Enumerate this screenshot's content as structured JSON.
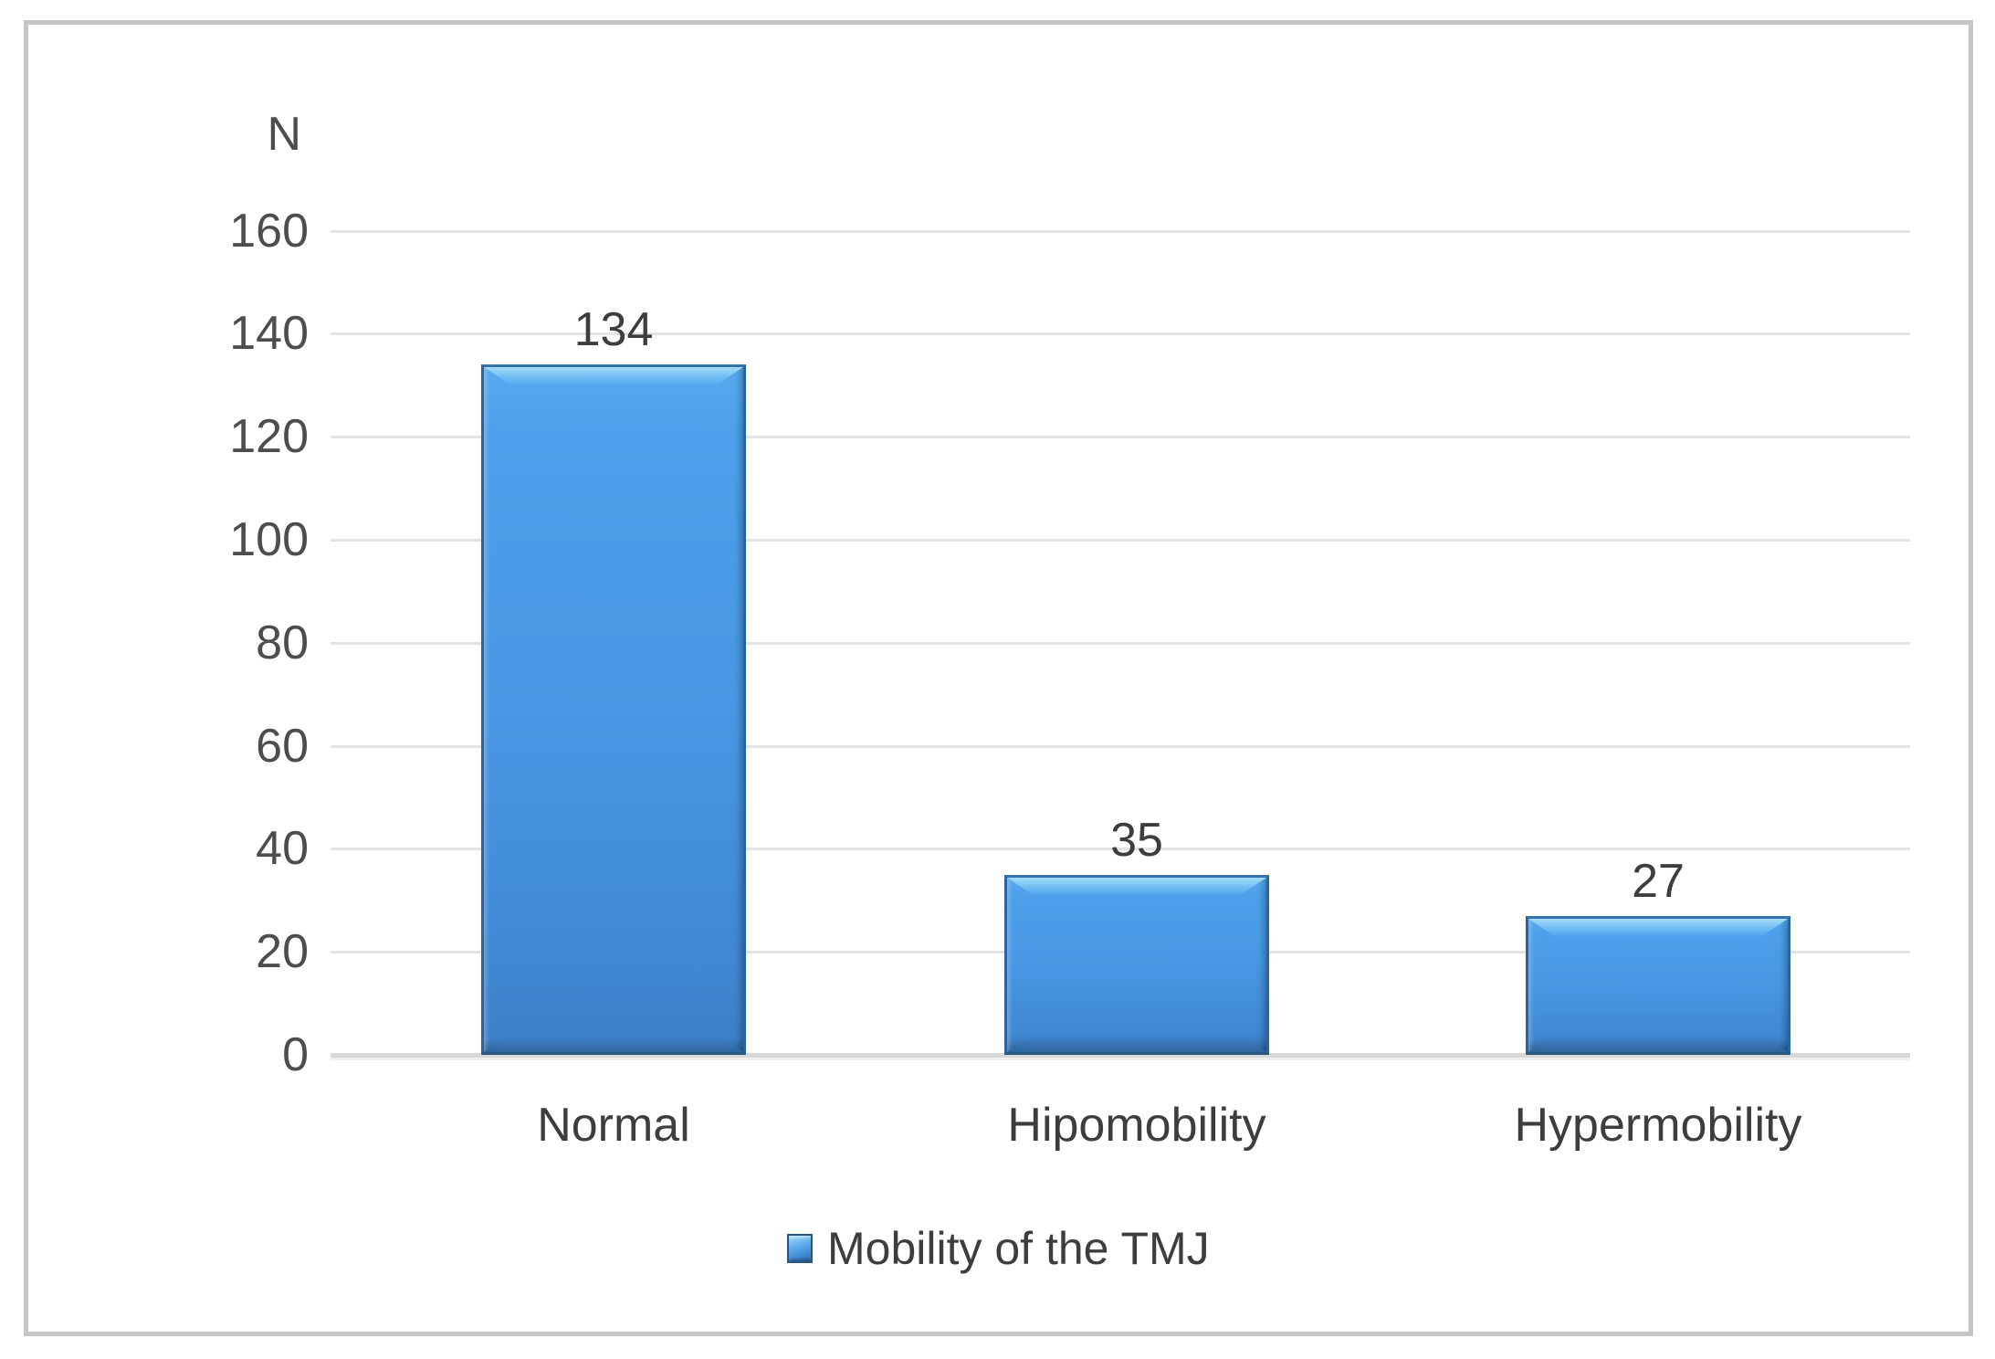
{
  "figure": {
    "background": "#ffffff",
    "frame_border_color": "#c6c6c6"
  },
  "chart_data": {
    "type": "bar",
    "title": "",
    "y_axis_title": "N",
    "categories": [
      "Normal",
      "Hipomobility",
      "Hypermobility"
    ],
    "values": [
      134,
      35,
      27
    ],
    "series": [
      {
        "name": "Mobility of the TMJ",
        "values": [
          134,
          35,
          27
        ]
      }
    ],
    "ylim": [
      0,
      160
    ],
    "ytick_step": 20,
    "yticks": [
      0,
      20,
      40,
      60,
      80,
      100,
      120,
      140,
      160
    ],
    "grid": true,
    "gridline_color": "#e3e3e3",
    "axis_line_color": "#d8d8d8",
    "bar_fill_color": "#4697e2",
    "bar_highlight_color": "#a5dbfb",
    "bar_edge_color": "#2a65a0",
    "label_color": "#3d3d3d",
    "tick_label_color": "#4d4d4d",
    "legend": {
      "label": "Mobility of the TMJ",
      "position": "bottom-center",
      "marker_color": "#4697e2"
    }
  }
}
